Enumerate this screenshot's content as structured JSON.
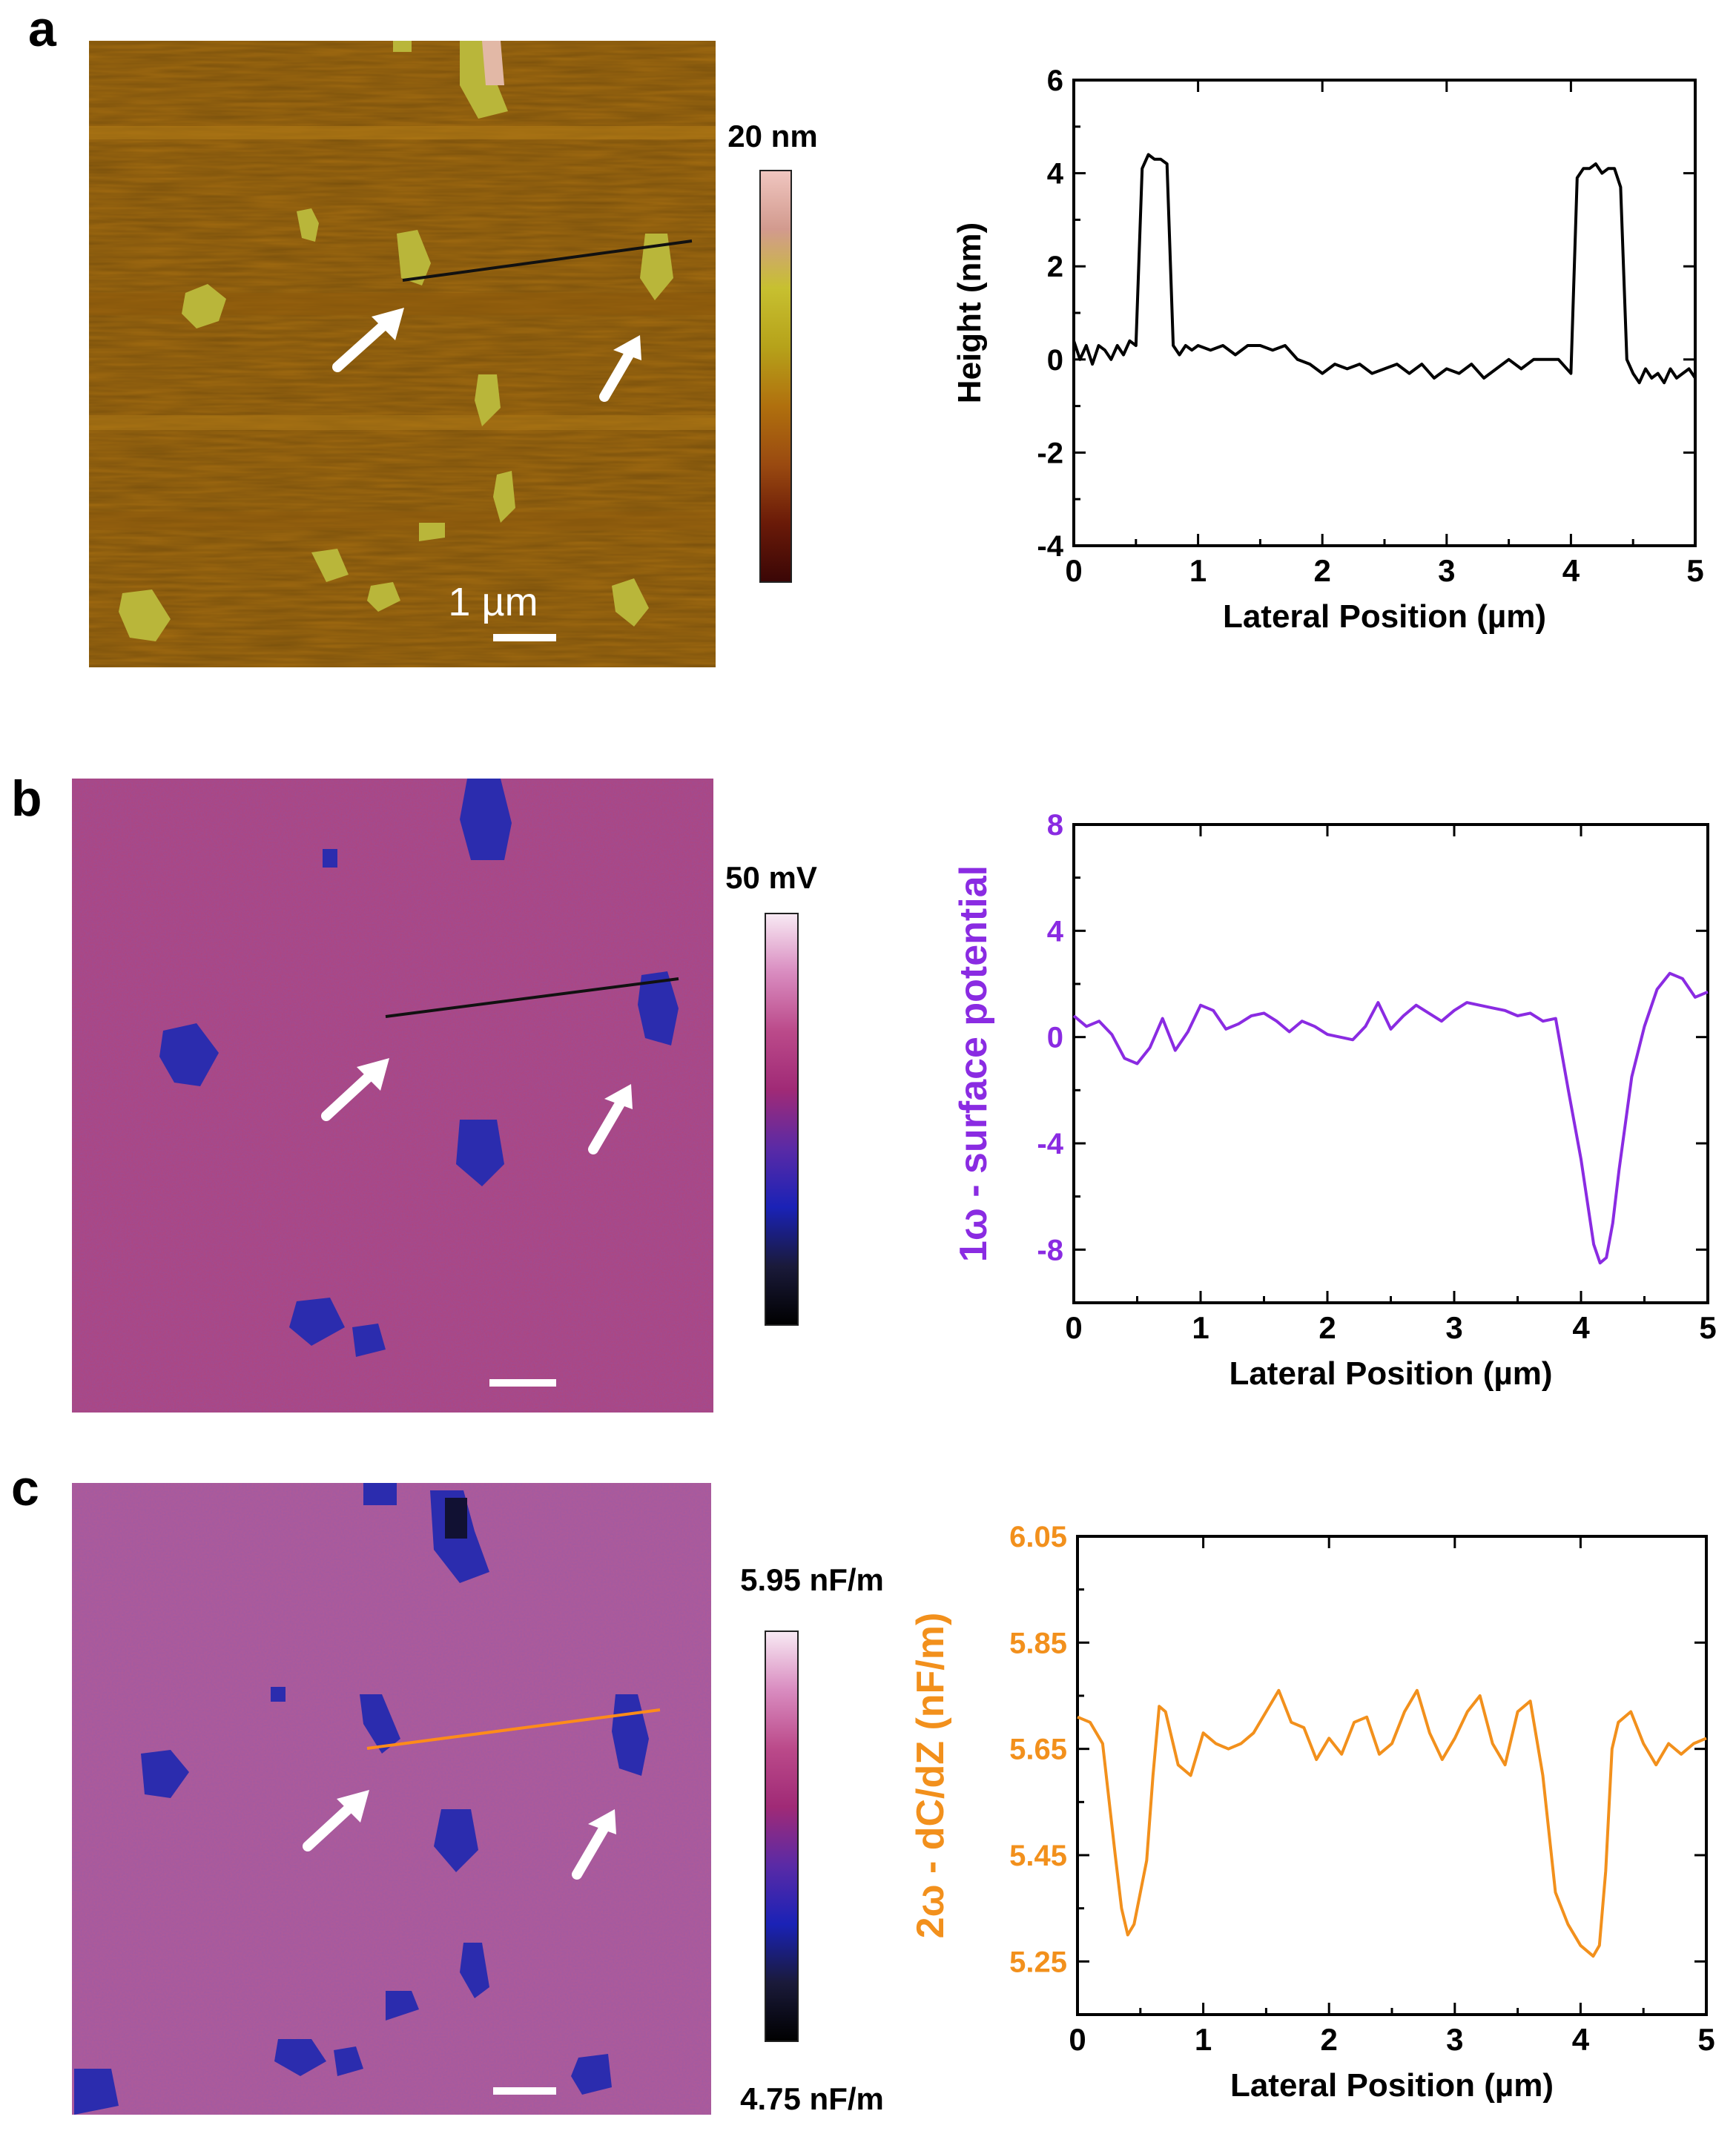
{
  "panels": [
    {
      "letter": "a",
      "image": {
        "kind": "height",
        "colorbar": {
          "max_label": "20 nm",
          "min_label": "",
          "stops": [
            "#3a0606",
            "#6a1a08",
            "#9a4a10",
            "#b0700e",
            "#b6a21a",
            "#c7c030",
            "#d29a8e",
            "#f0c6c0"
          ]
        },
        "scale_bar_label": "1 µm",
        "profile_line_color": "#111111"
      },
      "chart_data": {
        "type": "line",
        "title": "",
        "xlabel": "Lateral Position (µm)",
        "ylabel": "Height (nm)",
        "color": "#000000",
        "xlim": [
          0,
          5
        ],
        "ylim": [
          -4,
          6
        ],
        "xticks": [
          0,
          1,
          2,
          3,
          4,
          5
        ],
        "yticks": [
          -4,
          -2,
          0,
          2,
          4,
          6
        ],
        "ytick_labels": [
          "-4",
          "-2",
          "0",
          "2",
          "4",
          "6"
        ],
        "x": [
          0,
          0.05,
          0.1,
          0.15,
          0.2,
          0.25,
          0.3,
          0.35,
          0.4,
          0.45,
          0.5,
          0.55,
          0.6,
          0.65,
          0.7,
          0.75,
          0.8,
          0.85,
          0.9,
          0.95,
          1.0,
          1.1,
          1.2,
          1.3,
          1.4,
          1.5,
          1.6,
          1.7,
          1.8,
          1.9,
          2.0,
          2.1,
          2.2,
          2.3,
          2.4,
          2.5,
          2.6,
          2.7,
          2.8,
          2.9,
          3.0,
          3.1,
          3.2,
          3.3,
          3.4,
          3.5,
          3.6,
          3.7,
          3.8,
          3.9,
          4.0,
          4.05,
          4.1,
          4.15,
          4.2,
          4.25,
          4.3,
          4.35,
          4.4,
          4.45,
          4.5,
          4.55,
          4.6,
          4.65,
          4.7,
          4.75,
          4.8,
          4.85,
          4.9,
          4.95,
          5.0
        ],
        "y": [
          0.4,
          0.0,
          0.3,
          -0.1,
          0.3,
          0.2,
          0.0,
          0.3,
          0.1,
          0.4,
          0.3,
          4.1,
          4.4,
          4.3,
          4.3,
          4.2,
          0.3,
          0.1,
          0.3,
          0.2,
          0.3,
          0.2,
          0.3,
          0.1,
          0.3,
          0.3,
          0.2,
          0.3,
          0.0,
          -0.1,
          -0.3,
          -0.1,
          -0.2,
          -0.1,
          -0.3,
          -0.2,
          -0.1,
          -0.3,
          -0.1,
          -0.4,
          -0.2,
          -0.3,
          -0.1,
          -0.4,
          -0.2,
          0.0,
          -0.2,
          0.0,
          0.0,
          0.0,
          -0.3,
          3.9,
          4.1,
          4.1,
          4.2,
          4.0,
          4.1,
          4.1,
          3.7,
          0.0,
          -0.3,
          -0.5,
          -0.2,
          -0.4,
          -0.3,
          -0.5,
          -0.2,
          -0.4,
          -0.3,
          -0.2,
          -0.4
        ]
      }
    },
    {
      "letter": "b",
      "image": {
        "kind": "potential",
        "colorbar": {
          "max_label": "50 mV",
          "min_label": "",
          "stops": [
            "#000000",
            "#1a1a3a",
            "#1a22b6",
            "#5a2aa6",
            "#a02a76",
            "#bb4a8a",
            "#d98cc0",
            "#f8eaf4"
          ]
        },
        "scale_bar_label": "",
        "profile_line_color": "#111111"
      },
      "chart_data": {
        "type": "line",
        "title": "",
        "xlabel": "Lateral Position (µm)",
        "ylabel": "1ω - surface potential",
        "color": "#8a2be2",
        "xlim": [
          0,
          5
        ],
        "ylim": [
          -10,
          8
        ],
        "xticks": [
          0,
          1,
          2,
          3,
          4,
          5
        ],
        "yticks": [
          -8,
          -4,
          0,
          4,
          8
        ],
        "ytick_labels": [
          "-8",
          "-4",
          "0",
          "4",
          "8"
        ],
        "x": [
          0,
          0.1,
          0.2,
          0.3,
          0.4,
          0.5,
          0.6,
          0.7,
          0.8,
          0.9,
          1.0,
          1.1,
          1.2,
          1.3,
          1.4,
          1.5,
          1.6,
          1.7,
          1.8,
          1.9,
          2.0,
          2.1,
          2.2,
          2.3,
          2.4,
          2.5,
          2.6,
          2.7,
          2.8,
          2.9,
          3.0,
          3.1,
          3.2,
          3.3,
          3.4,
          3.5,
          3.6,
          3.7,
          3.8,
          3.9,
          4.0,
          4.1,
          4.15,
          4.2,
          4.25,
          4.3,
          4.4,
          4.5,
          4.6,
          4.7,
          4.8,
          4.9,
          5.0
        ],
        "y": [
          0.8,
          0.4,
          0.6,
          0.1,
          -0.8,
          -1.0,
          -0.4,
          0.7,
          -0.5,
          0.2,
          1.2,
          1.0,
          0.3,
          0.5,
          0.8,
          0.9,
          0.6,
          0.2,
          0.6,
          0.4,
          0.1,
          0.0,
          -0.1,
          0.4,
          1.3,
          0.3,
          0.8,
          1.2,
          0.9,
          0.6,
          1.0,
          1.3,
          1.2,
          1.1,
          1.0,
          0.8,
          0.9,
          0.6,
          0.7,
          -2.0,
          -4.6,
          -7.8,
          -8.5,
          -8.3,
          -7.0,
          -5.0,
          -1.5,
          0.4,
          1.8,
          2.4,
          2.2,
          1.5,
          1.7
        ]
      }
    },
    {
      "letter": "c",
      "image": {
        "kind": "capacitance",
        "colorbar": {
          "max_label": "5.95 nF/m",
          "min_label": "4.75 nF/m",
          "stops": [
            "#000000",
            "#1a1a3a",
            "#1a22b6",
            "#5a2aa6",
            "#a02a76",
            "#bb4a8a",
            "#d98cc0",
            "#f8eaf4"
          ]
        },
        "scale_bar_label": "",
        "profile_line_color": "#ff8c1a"
      },
      "chart_data": {
        "type": "line",
        "title": "",
        "xlabel": "Lateral Position (µm)",
        "ylabel": "2ω - dC/dZ (nF/m)",
        "color": "#f2901c",
        "xlim": [
          0,
          5
        ],
        "ylim": [
          5.15,
          6.05
        ],
        "xticks": [
          0,
          1,
          2,
          3,
          4,
          5
        ],
        "yticks": [
          5.25,
          5.45,
          5.65,
          5.85,
          6.05
        ],
        "ytick_labels": [
          "5.25",
          "5.45",
          "5.65",
          "5.85",
          "6.05"
        ],
        "x": [
          0,
          0.1,
          0.2,
          0.3,
          0.35,
          0.4,
          0.45,
          0.5,
          0.55,
          0.6,
          0.65,
          0.7,
          0.8,
          0.9,
          1.0,
          1.1,
          1.2,
          1.3,
          1.4,
          1.5,
          1.6,
          1.7,
          1.8,
          1.9,
          2.0,
          2.1,
          2.2,
          2.3,
          2.4,
          2.5,
          2.6,
          2.7,
          2.8,
          2.9,
          3.0,
          3.1,
          3.2,
          3.3,
          3.4,
          3.5,
          3.6,
          3.7,
          3.8,
          3.9,
          4.0,
          4.1,
          4.15,
          4.2,
          4.25,
          4.3,
          4.4,
          4.5,
          4.6,
          4.7,
          4.8,
          4.9,
          5.0
        ],
        "y": [
          5.71,
          5.7,
          5.66,
          5.45,
          5.35,
          5.3,
          5.32,
          5.38,
          5.44,
          5.6,
          5.73,
          5.72,
          5.62,
          5.6,
          5.68,
          5.66,
          5.65,
          5.66,
          5.68,
          5.72,
          5.76,
          5.7,
          5.69,
          5.63,
          5.67,
          5.64,
          5.7,
          5.71,
          5.64,
          5.66,
          5.72,
          5.76,
          5.68,
          5.63,
          5.67,
          5.72,
          5.75,
          5.66,
          5.62,
          5.72,
          5.74,
          5.6,
          5.38,
          5.32,
          5.28,
          5.26,
          5.28,
          5.42,
          5.65,
          5.7,
          5.72,
          5.66,
          5.62,
          5.66,
          5.64,
          5.66,
          5.67
        ]
      }
    }
  ]
}
